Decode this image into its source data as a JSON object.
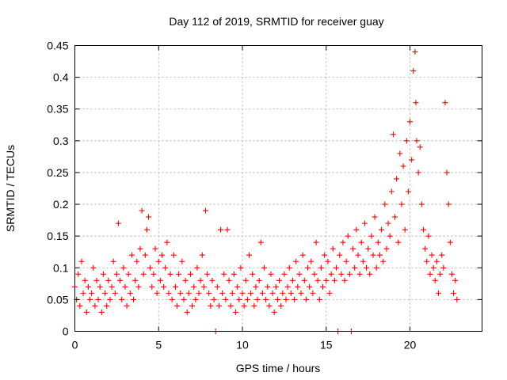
{
  "chart_data": {
    "type": "scatter",
    "title": "Day 112 of 2019, SRMTID for receiver guay",
    "xlabel": "GPS time / hours",
    "ylabel": "SRMTID / TECUs",
    "xlim": [
      0,
      24.3
    ],
    "ylim": [
      0,
      0.45
    ],
    "x_ticks": [
      0,
      5,
      10,
      15,
      20
    ],
    "x_tick_labels": [
      "0",
      "5",
      "10",
      "15",
      "20"
    ],
    "y_ticks": [
      0,
      0.05,
      0.1,
      0.15,
      0.2,
      0.25,
      0.3,
      0.35,
      0.4,
      0.45
    ],
    "y_tick_labels": [
      "0",
      "0.05",
      "0.1",
      "0.15",
      "0.2",
      "0.25",
      "0.3",
      "0.35",
      "0.4",
      "0.45"
    ],
    "grid": true,
    "marker": "+",
    "color": "#ff0000",
    "series": [
      {
        "name": "SRMTID",
        "points": [
          [
            0.0,
            0.07
          ],
          [
            0.1,
            0.05
          ],
          [
            0.2,
            0.09
          ],
          [
            0.3,
            0.04
          ],
          [
            0.4,
            0.11
          ],
          [
            0.5,
            0.06
          ],
          [
            0.6,
            0.08
          ],
          [
            0.7,
            0.03
          ],
          [
            0.8,
            0.07
          ],
          [
            0.9,
            0.05
          ],
          [
            1.0,
            0.06
          ],
          [
            1.1,
            0.1
          ],
          [
            1.2,
            0.04
          ],
          [
            1.3,
            0.08
          ],
          [
            1.4,
            0.05
          ],
          [
            1.5,
            0.07
          ],
          [
            1.6,
            0.03
          ],
          [
            1.7,
            0.09
          ],
          [
            1.8,
            0.06
          ],
          [
            1.9,
            0.04
          ],
          [
            2.0,
            0.08
          ],
          [
            2.1,
            0.05
          ],
          [
            2.2,
            0.07
          ],
          [
            2.3,
            0.11
          ],
          [
            2.4,
            0.06
          ],
          [
            2.5,
            0.09
          ],
          [
            2.6,
            0.17
          ],
          [
            2.7,
            0.08
          ],
          [
            2.8,
            0.05
          ],
          [
            2.9,
            0.1
          ],
          [
            3.0,
            0.07
          ],
          [
            3.1,
            0.04
          ],
          [
            3.2,
            0.09
          ],
          [
            3.3,
            0.06
          ],
          [
            3.4,
            0.12
          ],
          [
            3.5,
            0.05
          ],
          [
            3.6,
            0.08
          ],
          [
            3.7,
            0.11
          ],
          [
            3.8,
            0.07
          ],
          [
            3.9,
            0.13
          ],
          [
            4.0,
            0.19
          ],
          [
            4.1,
            0.09
          ],
          [
            4.2,
            0.12
          ],
          [
            4.3,
            0.16
          ],
          [
            4.4,
            0.18
          ],
          [
            4.5,
            0.1
          ],
          [
            4.6,
            0.07
          ],
          [
            4.7,
            0.09
          ],
          [
            4.8,
            0.13
          ],
          [
            4.9,
            0.06
          ],
          [
            5.0,
            0.11
          ],
          [
            5.1,
            0.08
          ],
          [
            5.2,
            0.12
          ],
          [
            5.3,
            0.07
          ],
          [
            5.4,
            0.1
          ],
          [
            5.5,
            0.14
          ],
          [
            5.6,
            0.06
          ],
          [
            5.7,
            0.09
          ],
          [
            5.8,
            0.05
          ],
          [
            5.9,
            0.12
          ],
          [
            6.0,
            0.07
          ],
          [
            6.1,
            0.04
          ],
          [
            6.2,
            0.09
          ],
          [
            6.3,
            0.06
          ],
          [
            6.4,
            0.11
          ],
          [
            6.5,
            0.05
          ],
          [
            6.6,
            0.08
          ],
          [
            6.7,
            0.03
          ],
          [
            6.8,
            0.06
          ],
          [
            6.9,
            0.09
          ],
          [
            7.0,
            0.04
          ],
          [
            7.1,
            0.07
          ],
          [
            7.2,
            0.05
          ],
          [
            7.3,
            0.1
          ],
          [
            7.4,
            0.06
          ],
          [
            7.5,
            0.08
          ],
          [
            7.6,
            0.12
          ],
          [
            7.7,
            0.07
          ],
          [
            7.8,
            0.19
          ],
          [
            7.9,
            0.09
          ],
          [
            8.0,
            0.06
          ],
          [
            8.1,
            0.04
          ],
          [
            8.2,
            0.08
          ],
          [
            8.3,
            0.05
          ],
          [
            8.4,
            0.0
          ],
          [
            8.5,
            0.07
          ],
          [
            8.6,
            0.04
          ],
          [
            8.7,
            0.16
          ],
          [
            8.8,
            0.06
          ],
          [
            8.9,
            0.09
          ],
          [
            9.0,
            0.05
          ],
          [
            9.1,
            0.16
          ],
          [
            9.2,
            0.08
          ],
          [
            9.3,
            0.04
          ],
          [
            9.4,
            0.06
          ],
          [
            9.5,
            0.09
          ],
          [
            9.6,
            0.03
          ],
          [
            9.7,
            0.07
          ],
          [
            9.8,
            0.05
          ],
          [
            9.9,
            0.1
          ],
          [
            10.0,
            0.06
          ],
          [
            10.1,
            0.04
          ],
          [
            10.2,
            0.08
          ],
          [
            10.3,
            0.05
          ],
          [
            10.4,
            0.12
          ],
          [
            10.5,
            0.06
          ],
          [
            10.6,
            0.09
          ],
          [
            10.7,
            0.04
          ],
          [
            10.8,
            0.07
          ],
          [
            10.9,
            0.05
          ],
          [
            11.0,
            0.08
          ],
          [
            11.1,
            0.14
          ],
          [
            11.2,
            0.06
          ],
          [
            11.3,
            0.1
          ],
          [
            11.4,
            0.05
          ],
          [
            11.5,
            0.07
          ],
          [
            11.6,
            0.04
          ],
          [
            11.7,
            0.09
          ],
          [
            11.8,
            0.06
          ],
          [
            11.9,
            0.03
          ],
          [
            12.0,
            0.07
          ],
          [
            12.1,
            0.05
          ],
          [
            12.2,
            0.08
          ],
          [
            12.3,
            0.04
          ],
          [
            12.4,
            0.06
          ],
          [
            12.5,
            0.09
          ],
          [
            12.6,
            0.05
          ],
          [
            12.7,
            0.07
          ],
          [
            12.8,
            0.1
          ],
          [
            12.9,
            0.06
          ],
          [
            13.0,
            0.08
          ],
          [
            13.1,
            0.05
          ],
          [
            13.2,
            0.11
          ],
          [
            13.3,
            0.07
          ],
          [
            13.4,
            0.09
          ],
          [
            13.5,
            0.06
          ],
          [
            13.6,
            0.12
          ],
          [
            13.7,
            0.08
          ],
          [
            13.8,
            0.05
          ],
          [
            13.9,
            0.1
          ],
          [
            14.0,
            0.07
          ],
          [
            14.1,
            0.11
          ],
          [
            14.2,
            0.06
          ],
          [
            14.3,
            0.09
          ],
          [
            14.4,
            0.14
          ],
          [
            14.5,
            0.08
          ],
          [
            14.6,
            0.05
          ],
          [
            14.7,
            0.1
          ],
          [
            14.8,
            0.07
          ],
          [
            14.9,
            0.12
          ],
          [
            15.0,
            0.08
          ],
          [
            15.1,
            0.11
          ],
          [
            15.2,
            0.06
          ],
          [
            15.3,
            0.09
          ],
          [
            15.4,
            0.13
          ],
          [
            15.5,
            0.08
          ],
          [
            15.6,
            0.1
          ],
          [
            15.7,
            0.0
          ],
          [
            15.8,
            0.12
          ],
          [
            15.9,
            0.09
          ],
          [
            16.0,
            0.14
          ],
          [
            16.1,
            0.08
          ],
          [
            16.2,
            0.11
          ],
          [
            16.3,
            0.15
          ],
          [
            16.4,
            0.09
          ],
          [
            16.5,
            0.0
          ],
          [
            16.6,
            0.13
          ],
          [
            16.7,
            0.1
          ],
          [
            16.8,
            0.16
          ],
          [
            16.9,
            0.12
          ],
          [
            17.0,
            0.09
          ],
          [
            17.1,
            0.14
          ],
          [
            17.2,
            0.11
          ],
          [
            17.3,
            0.17
          ],
          [
            17.4,
            0.1
          ],
          [
            17.5,
            0.13
          ],
          [
            17.6,
            0.09
          ],
          [
            17.7,
            0.15
          ],
          [
            17.8,
            0.12
          ],
          [
            17.9,
            0.18
          ],
          [
            18.0,
            0.1
          ],
          [
            18.1,
            0.14
          ],
          [
            18.2,
            0.12
          ],
          [
            18.3,
            0.16
          ],
          [
            18.4,
            0.11
          ],
          [
            18.5,
            0.2
          ],
          [
            18.6,
            0.13
          ],
          [
            18.7,
            0.17
          ],
          [
            18.8,
            0.15
          ],
          [
            18.9,
            0.22
          ],
          [
            19.0,
            0.31
          ],
          [
            19.1,
            0.18
          ],
          [
            19.2,
            0.24
          ],
          [
            19.3,
            0.14
          ],
          [
            19.4,
            0.28
          ],
          [
            19.5,
            0.2
          ],
          [
            19.6,
            0.26
          ],
          [
            19.7,
            0.16
          ],
          [
            19.8,
            0.3
          ],
          [
            19.9,
            0.22
          ],
          [
            20.0,
            0.33
          ],
          [
            20.1,
            0.27
          ],
          [
            20.2,
            0.41
          ],
          [
            20.3,
            0.44
          ],
          [
            20.35,
            0.36
          ],
          [
            20.4,
            0.3
          ],
          [
            20.5,
            0.25
          ],
          [
            20.6,
            0.29
          ],
          [
            20.7,
            0.2
          ],
          [
            20.8,
            0.16
          ],
          [
            20.9,
            0.13
          ],
          [
            21.0,
            0.11
          ],
          [
            21.1,
            0.15
          ],
          [
            21.2,
            0.09
          ],
          [
            21.3,
            0.12
          ],
          [
            21.4,
            0.1
          ],
          [
            21.5,
            0.08
          ],
          [
            21.6,
            0.11
          ],
          [
            21.7,
            0.06
          ],
          [
            21.8,
            0.09
          ],
          [
            21.9,
            0.12
          ],
          [
            22.0,
            0.1
          ],
          [
            22.1,
            0.36
          ],
          [
            22.2,
            0.25
          ],
          [
            22.3,
            0.2
          ],
          [
            22.4,
            0.14
          ],
          [
            22.5,
            0.09
          ],
          [
            22.6,
            0.06
          ],
          [
            22.7,
            0.08
          ],
          [
            22.8,
            0.05
          ]
        ]
      }
    ]
  }
}
